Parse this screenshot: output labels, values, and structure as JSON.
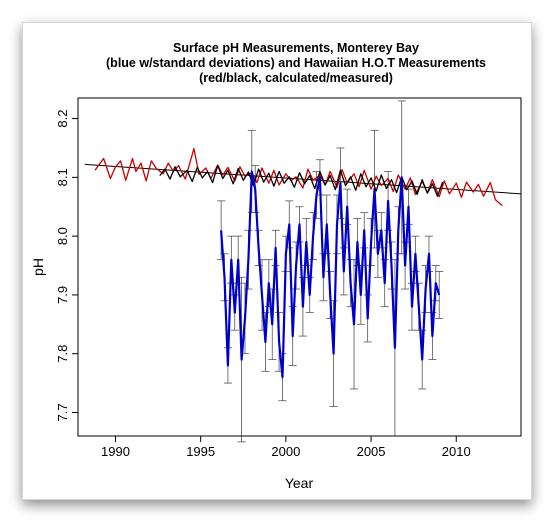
{
  "chart_data": {
    "type": "line",
    "title": [
      "Surface pH Measurements, Monterey Bay",
      "(blue w/standard deviations) and Hawaiian H.O.T Measurements",
      "(red/black, calculated/measured)"
    ],
    "xlabel": "Year",
    "ylabel": "pH",
    "xlim": [
      1987.8,
      2013.8
    ],
    "ylim": [
      7.66,
      8.235
    ],
    "x_ticks": [
      1990,
      1995,
      2000,
      2005,
      2010
    ],
    "y_ticks": [
      7.7,
      7.8,
      7.9,
      8.0,
      8.1,
      8.2
    ],
    "grid": false,
    "legend": "none",
    "colors": {
      "calculated": "#cc0000",
      "measured": "#000000",
      "monterey": "#0000cc",
      "errorbar": "#555555",
      "trend": "#000000"
    },
    "trend": {
      "x": [
        1988.2,
        2013.8
      ],
      "y": [
        8.122,
        8.072
      ]
    },
    "series": [
      {
        "key": "hot_calculated",
        "x": [
          1988.8,
          1989.3,
          1989.7,
          1990.0,
          1990.3,
          1990.6,
          1991.0,
          1991.2,
          1991.5,
          1991.8,
          1992.1,
          1992.4,
          1992.8,
          1993.1,
          1993.4,
          1993.7,
          1994.1,
          1994.3,
          1994.6,
          1994.9,
          1995.3,
          1995.6,
          1996.0,
          1996.3,
          1996.6,
          1997.0,
          1997.3,
          1997.6,
          1998.0,
          1998.3,
          1998.6,
          1999.0,
          1999.3,
          1999.6,
          2000.0,
          2000.3,
          2000.6,
          2001.0,
          2001.3,
          2001.6,
          2002.0,
          2002.3,
          2002.6,
          2003.0,
          2003.3,
          2003.6,
          2004.0,
          2004.3,
          2004.6,
          2005.0,
          2005.3,
          2005.6,
          2006.0,
          2006.3,
          2006.6,
          2007.0,
          2007.3,
          2007.6,
          2008.0,
          2008.3,
          2008.6,
          2009.0,
          2009.3,
          2009.6,
          2010.0,
          2010.3,
          2010.6,
          2011.0,
          2011.3,
          2011.6,
          2012.0,
          2012.3,
          2012.7
        ],
        "y": [
          8.112,
          8.132,
          8.098,
          8.118,
          8.128,
          8.095,
          8.132,
          8.11,
          8.124,
          8.094,
          8.128,
          8.115,
          8.106,
          8.124,
          8.11,
          8.12,
          8.097,
          8.118,
          8.149,
          8.105,
          8.116,
          8.098,
          8.121,
          8.104,
          8.117,
          8.094,
          8.118,
          8.102,
          8.108,
          8.091,
          8.116,
          8.09,
          8.112,
          8.087,
          8.106,
          8.094,
          8.101,
          8.082,
          8.114,
          8.095,
          8.104,
          8.087,
          8.11,
          8.083,
          8.113,
          8.09,
          8.106,
          8.084,
          8.112,
          8.08,
          8.102,
          8.086,
          8.098,
          8.076,
          8.104,
          8.08,
          8.099,
          8.071,
          8.093,
          8.074,
          8.096,
          8.067,
          8.094,
          8.072,
          8.09,
          8.066,
          8.092,
          8.075,
          8.088,
          8.068,
          8.091,
          8.062,
          8.052
        ]
      },
      {
        "key": "hot_measured",
        "x": [
          1992.6,
          1992.9,
          1993.2,
          1993.5,
          1993.8,
          1994.2,
          1994.5,
          1994.8,
          1995.1,
          1995.4,
          1995.7,
          1996.0,
          1996.3,
          1996.6,
          1996.9,
          1997.2,
          1997.5,
          1997.8,
          1998.1,
          1998.4,
          1998.7,
          1999.0,
          1999.3,
          1999.6,
          1999.9,
          2000.2,
          2000.5,
          2000.8,
          2001.1,
          2001.4,
          2001.7,
          2002.0,
          2002.3,
          2002.6,
          2002.9,
          2003.2,
          2003.5,
          2003.8,
          2004.1,
          2004.4,
          2004.7,
          2005.0,
          2005.3,
          2005.6,
          2005.9,
          2006.2,
          2006.5,
          2006.8,
          2007.1,
          2007.4,
          2007.7,
          2008.0,
          2008.3,
          2008.6,
          2008.9,
          2009.2
        ],
        "y": [
          8.103,
          8.114,
          8.097,
          8.118,
          8.101,
          8.112,
          8.093,
          8.117,
          8.099,
          8.11,
          8.091,
          8.12,
          8.098,
          8.112,
          8.089,
          8.115,
          8.095,
          8.109,
          8.086,
          8.114,
          8.092,
          8.107,
          8.085,
          8.11,
          8.09,
          8.101,
          8.083,
          8.108,
          8.089,
          8.103,
          8.081,
          8.11,
          8.087,
          8.103,
          8.079,
          8.112,
          8.086,
          8.101,
          8.078,
          8.106,
          8.084,
          8.099,
          8.077,
          8.104,
          8.081,
          8.096,
          8.074,
          8.101,
          8.079,
          8.094,
          8.071,
          8.096,
          8.073,
          8.089,
          8.068,
          8.092
        ]
      },
      {
        "key": "monterey",
        "x": [
          1996.2,
          1996.4,
          1996.6,
          1996.8,
          1997.0,
          1997.2,
          1997.4,
          1997.6,
          1997.8,
          1998.0,
          1998.2,
          1998.4,
          1998.6,
          1998.8,
          1999.0,
          1999.2,
          1999.4,
          1999.6,
          1999.8,
          2000.0,
          2000.2,
          2000.4,
          2000.6,
          2000.8,
          2001.0,
          2001.2,
          2001.4,
          2001.6,
          2001.8,
          2002.0,
          2002.2,
          2002.4,
          2002.6,
          2002.8,
          2003.0,
          2003.2,
          2003.4,
          2003.6,
          2003.8,
          2004.0,
          2004.2,
          2004.4,
          2004.6,
          2004.8,
          2005.0,
          2005.2,
          2005.4,
          2005.6,
          2005.8,
          2006.0,
          2006.2,
          2006.4,
          2006.6,
          2006.8,
          2007.0,
          2007.2,
          2007.4,
          2007.6,
          2007.8,
          2008.0,
          2008.2,
          2008.4,
          2008.6,
          2008.8,
          2009.0
        ],
        "y": [
          8.01,
          7.93,
          7.78,
          7.96,
          7.87,
          7.96,
          7.79,
          7.86,
          7.96,
          8.11,
          8.08,
          7.98,
          7.9,
          7.82,
          7.92,
          7.85,
          7.98,
          7.82,
          7.76,
          7.97,
          8.02,
          7.83,
          7.95,
          8.02,
          7.88,
          7.99,
          7.9,
          8.0,
          8.07,
          8.1,
          7.93,
          8.02,
          7.9,
          7.8,
          8.02,
          8.09,
          7.94,
          8.05,
          7.92,
          7.85,
          7.99,
          7.9,
          8.01,
          7.86,
          7.99,
          8.08,
          7.97,
          8.01,
          7.92,
          8.06,
          7.95,
          7.81,
          8.01,
          8.1,
          7.95,
          8.05,
          7.88,
          7.97,
          7.88,
          7.79,
          7.91,
          7.97,
          7.83,
          7.92,
          7.9
        ],
        "sd": [
          0.05,
          0.04,
          0.03,
          0.04,
          0.03,
          0.04,
          0.14,
          0.06,
          0.05,
          0.07,
          0.04,
          0.03,
          0.06,
          0.05,
          0.04,
          0.06,
          0.03,
          0.05,
          0.04,
          0.03,
          0.04,
          0.05,
          0.04,
          0.03,
          0.05,
          0.04,
          0.03,
          0.04,
          0.04,
          0.03,
          0.04,
          0.05,
          0.04,
          0.09,
          0.05,
          0.06,
          0.04,
          0.03,
          0.04,
          0.11,
          0.04,
          0.05,
          0.03,
          0.04,
          0.04,
          0.1,
          0.04,
          0.03,
          0.04,
          0.05,
          0.04,
          0.15,
          0.04,
          0.13,
          0.04,
          0.03,
          0.04,
          0.03,
          0.04,
          0.05,
          0.04,
          0.03,
          0.04,
          0.03,
          0.04
        ]
      }
    ]
  }
}
